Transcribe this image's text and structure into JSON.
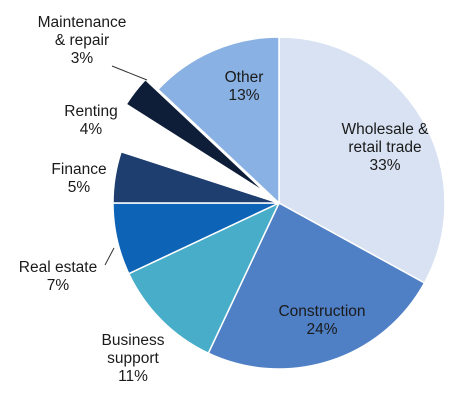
{
  "chart_data": {
    "type": "pie",
    "start_angle_deg": 0,
    "direction": "clockwise",
    "slices": [
      {
        "label_lines": [
          "Wholesale &",
          "retail trade"
        ],
        "value": 33,
        "value_label": "33%",
        "color": "#d8e2f2",
        "exploded": false
      },
      {
        "label_lines": [
          "Construction"
        ],
        "value": 24,
        "value_label": "24%",
        "color": "#4f7fc4",
        "exploded": false
      },
      {
        "label_lines": [
          "Business",
          "support"
        ],
        "value": 11,
        "value_label": "11%",
        "color": "#48adc8",
        "exploded": false
      },
      {
        "label_lines": [
          "Real estate"
        ],
        "value": 7,
        "value_label": "7%",
        "color": "#0d63b5",
        "exploded": false
      },
      {
        "label_lines": [
          "Finance"
        ],
        "value": 5,
        "value_label": "5%",
        "color": "#1d3e6e",
        "exploded": false
      },
      {
        "label_lines": [
          "Renting"
        ],
        "value": 4,
        "value_label": "4%",
        "color": "#ffffff",
        "exploded": false
      },
      {
        "label_lines": [
          "Maintenance",
          "& repair"
        ],
        "value": 3,
        "value_label": "3%",
        "color": "#0e1e38",
        "exploded": true
      },
      {
        "label_lines": [
          "Other"
        ],
        "value": 13,
        "value_label": "13%",
        "color": "#8ab1e3",
        "exploded": false
      }
    ]
  }
}
